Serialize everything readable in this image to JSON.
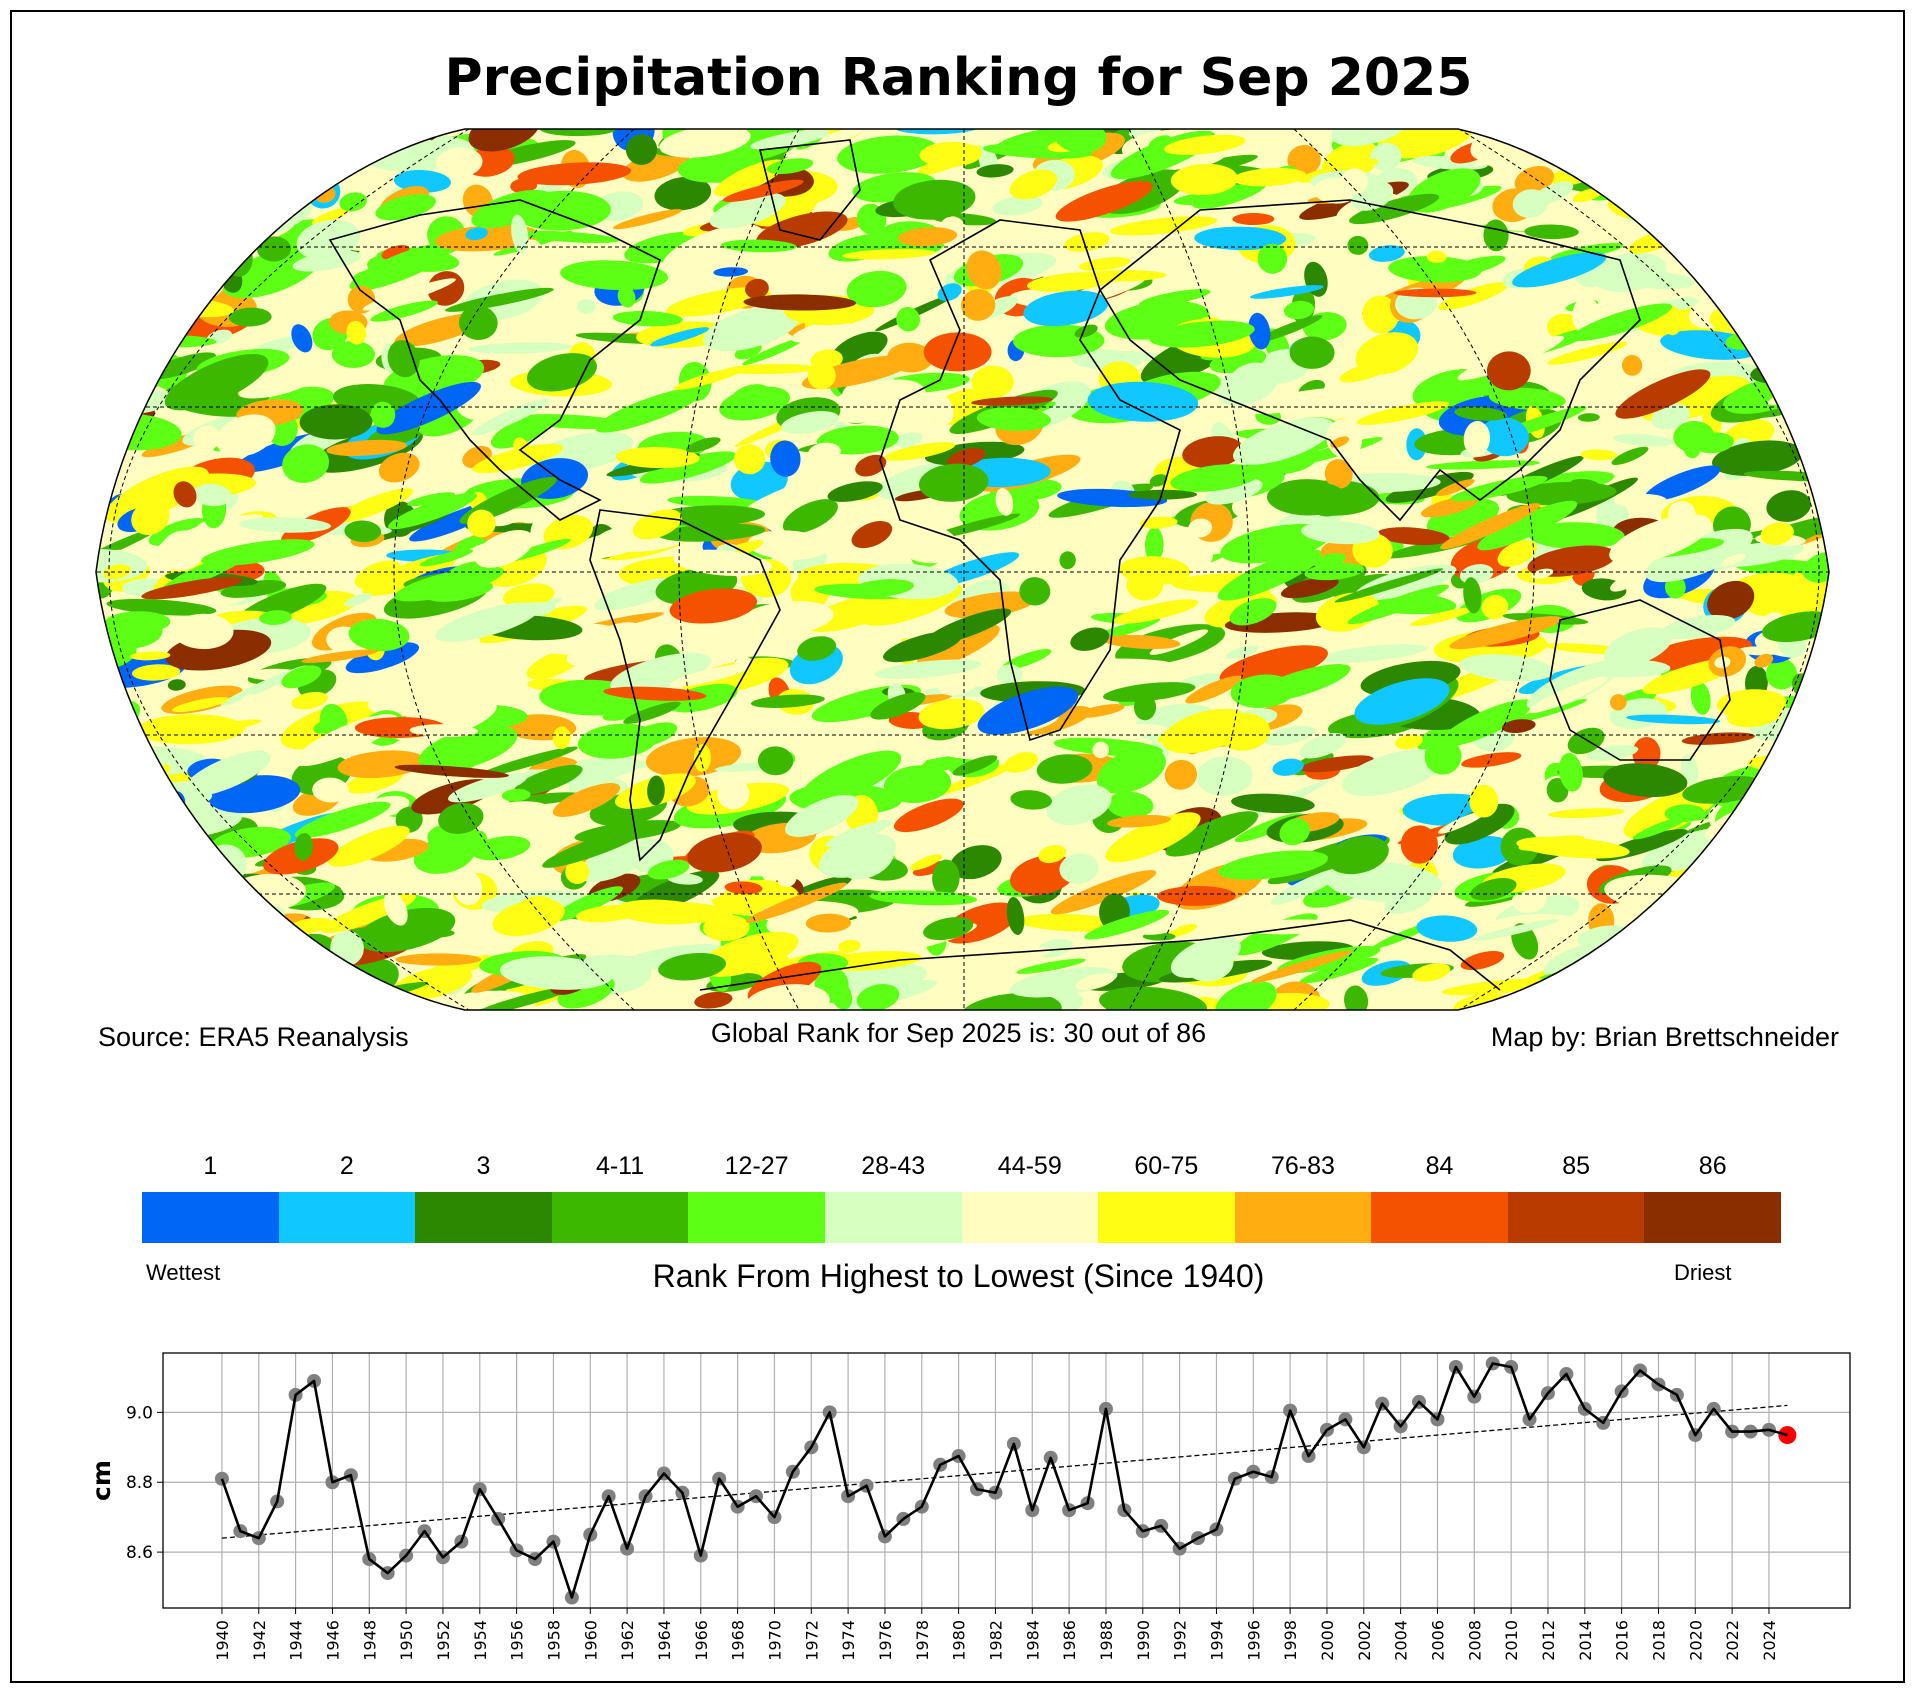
{
  "title": "Precipitation Ranking for Sep 2025",
  "footer": {
    "source": "Source: ERA5 Reanalysis",
    "global_rank": "Global Rank for Sep 2025 is: 30 out of 86",
    "credit": "Map by: Brian Brettschneider"
  },
  "colorbar": {
    "bins": [
      {
        "label": "1",
        "color": "#0066f5"
      },
      {
        "label": "2",
        "color": "#10c8ff"
      },
      {
        "label": "3",
        "color": "#2c8800"
      },
      {
        "label": "4-11",
        "color": "#3db800"
      },
      {
        "label": "12-27",
        "color": "#5dff14"
      },
      {
        "label": "28-43",
        "color": "#d6ffc0"
      },
      {
        "label": "44-59",
        "color": "#fffdc0"
      },
      {
        "label": "60-75",
        "color": "#fffd14"
      },
      {
        "label": "76-83",
        "color": "#ffad10"
      },
      {
        "label": "84",
        "color": "#f55200"
      },
      {
        "label": "85",
        "color": "#b83c00"
      },
      {
        "label": "86",
        "color": "#8a2e00"
      }
    ],
    "low_label": "Wettest",
    "high_label": "Driest",
    "title": "Rank From Highest to Lowest (Since 1940)"
  },
  "chart_data": {
    "type": "line",
    "ylabel": "cm",
    "xlabel": "",
    "ylim": [
      8.44,
      9.17
    ],
    "yticks": [
      8.6,
      8.8,
      9.0
    ],
    "ytick_labels": [
      "8.6",
      "8.8",
      "9.0"
    ],
    "xticks": [
      1940,
      1942,
      1944,
      1946,
      1948,
      1950,
      1952,
      1954,
      1956,
      1958,
      1960,
      1962,
      1964,
      1966,
      1968,
      1970,
      1972,
      1974,
      1976,
      1978,
      1980,
      1982,
      1984,
      1986,
      1988,
      1990,
      1992,
      1994,
      1996,
      1998,
      2000,
      2002,
      2004,
      2006,
      2008,
      2010,
      2012,
      2014,
      2016,
      2018,
      2020,
      2022,
      2024
    ],
    "grid": true,
    "x": [
      1940,
      1941,
      1942,
      1943,
      1944,
      1945,
      1946,
      1947,
      1948,
      1949,
      1950,
      1951,
      1952,
      1953,
      1954,
      1955,
      1956,
      1957,
      1958,
      1959,
      1960,
      1961,
      1962,
      1963,
      1964,
      1965,
      1966,
      1967,
      1968,
      1969,
      1970,
      1971,
      1972,
      1973,
      1974,
      1975,
      1976,
      1977,
      1978,
      1979,
      1980,
      1981,
      1982,
      1983,
      1984,
      1985,
      1986,
      1987,
      1988,
      1989,
      1990,
      1991,
      1992,
      1993,
      1994,
      1995,
      1996,
      1997,
      1998,
      1999,
      2000,
      2001,
      2002,
      2003,
      2004,
      2005,
      2006,
      2007,
      2008,
      2009,
      2010,
      2011,
      2012,
      2013,
      2014,
      2015,
      2016,
      2017,
      2018,
      2019,
      2020,
      2021,
      2022,
      2023,
      2024,
      2025
    ],
    "values": [
      8.81,
      8.66,
      8.64,
      8.745,
      9.05,
      9.09,
      8.8,
      8.82,
      8.58,
      8.54,
      8.59,
      8.66,
      8.585,
      8.63,
      8.78,
      8.695,
      8.605,
      8.58,
      8.63,
      8.47,
      8.65,
      8.76,
      8.61,
      8.76,
      8.825,
      8.77,
      8.59,
      8.81,
      8.73,
      8.76,
      8.7,
      8.83,
      8.9,
      9.0,
      8.76,
      8.79,
      8.645,
      8.695,
      8.73,
      8.85,
      8.875,
      8.78,
      8.77,
      8.91,
      8.72,
      8.87,
      8.72,
      8.74,
      9.01,
      8.72,
      8.66,
      8.675,
      8.61,
      8.64,
      8.665,
      8.81,
      8.83,
      8.815,
      9.005,
      8.875,
      8.95,
      8.98,
      8.9,
      9.025,
      8.96,
      9.03,
      8.98,
      9.13,
      9.045,
      9.14,
      9.13,
      8.98,
      9.055,
      9.11,
      9.01,
      8.97,
      9.06,
      9.12,
      9.08,
      9.05,
      8.935,
      9.01,
      8.945,
      8.945,
      8.95,
      8.935
    ],
    "trend": {
      "x": [
        1940,
        2025
      ],
      "y": [
        8.64,
        9.02
      ]
    },
    "point_color": "#808080",
    "line_color": "#000000",
    "highlight": {
      "x": 2025,
      "color": "#ff0000"
    }
  }
}
